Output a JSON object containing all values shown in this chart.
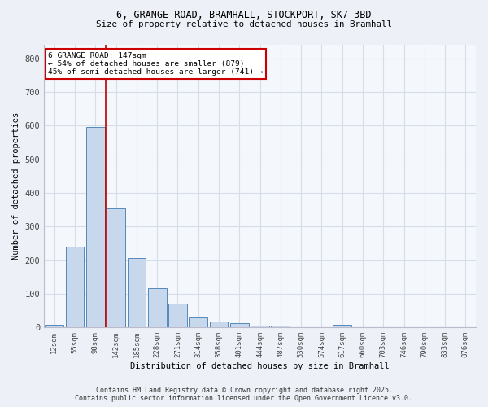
{
  "title1": "6, GRANGE ROAD, BRAMHALL, STOCKPORT, SK7 3BD",
  "title2": "Size of property relative to detached houses in Bramhall",
  "xlabel": "Distribution of detached houses by size in Bramhall",
  "ylabel": "Number of detached properties",
  "bar_labels": [
    "12sqm",
    "55sqm",
    "98sqm",
    "142sqm",
    "185sqm",
    "228sqm",
    "271sqm",
    "314sqm",
    "358sqm",
    "401sqm",
    "444sqm",
    "487sqm",
    "530sqm",
    "574sqm",
    "617sqm",
    "660sqm",
    "703sqm",
    "746sqm",
    "790sqm",
    "833sqm",
    "876sqm"
  ],
  "bar_values": [
    8,
    240,
    596,
    355,
    207,
    118,
    71,
    30,
    18,
    14,
    6,
    6,
    0,
    0,
    7,
    0,
    0,
    0,
    0,
    0,
    0
  ],
  "bar_color": "#c8d8ec",
  "bar_edge_color": "#5588bb",
  "grid_color": "#d4dde8",
  "vline_x_index": 2.5,
  "vline_color": "#bb0000",
  "annotation_text": "6 GRANGE ROAD: 147sqm\n← 54% of detached houses are smaller (879)\n45% of semi-detached houses are larger (741) →",
  "annotation_box_color": "#cc0000",
  "ylim": [
    0,
    840
  ],
  "yticks": [
    0,
    100,
    200,
    300,
    400,
    500,
    600,
    700,
    800
  ],
  "footer1": "Contains HM Land Registry data © Crown copyright and database right 2025.",
  "footer2": "Contains public sector information licensed under the Open Government Licence v3.0.",
  "bg_color": "#edf1f7",
  "plot_bg_color": "#f4f7fb"
}
